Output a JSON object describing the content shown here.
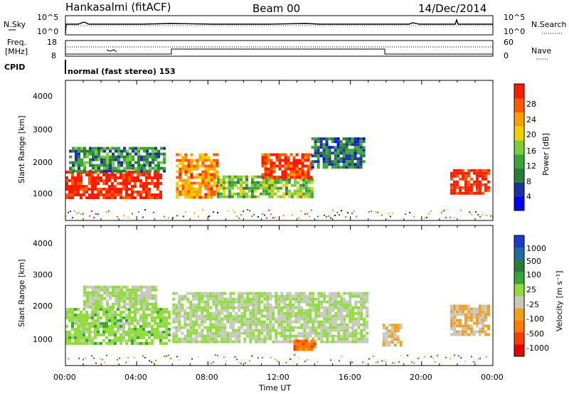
{
  "header": {
    "station": "Hankasalmi (fitACF)",
    "beam": "Beam 00",
    "date": "14/Dec/2014"
  },
  "noise_panel": {
    "left_label": "N.Sky",
    "right_label": "N.Search",
    "left_ticks": [
      "10^5",
      "10^0"
    ],
    "right_ticks": [
      "10^5",
      "10^0"
    ]
  },
  "freq_panel": {
    "left_label_1": "Freq.",
    "left_label_2": "[MHz]",
    "right_label": "Nave",
    "left_ticks": [
      "18",
      "8"
    ],
    "right_ticks": [
      "60",
      "0"
    ]
  },
  "cpid": {
    "label": "CPID",
    "text": "normal (fast stereo) 153"
  },
  "x_axis": {
    "label": "Time UT",
    "ticks": [
      "00:00",
      "04:00",
      "08:00",
      "12:00",
      "16:00",
      "20:00",
      "00:00"
    ]
  },
  "power_panel": {
    "y_label": "Slant Range [km]",
    "y_ticks": [
      "4000",
      "3000",
      "2000",
      "1000"
    ],
    "colorbar_label": "Power [dB]",
    "colorbar_ticks": [
      "28",
      "24",
      "20",
      "16",
      "12",
      "8",
      "4"
    ],
    "colors": [
      "#0000ff",
      "#1c2fa8",
      "#2b7b3b",
      "#3aa33a",
      "#7ccd3c",
      "#f0d000",
      "#ffa000",
      "#ff5a00",
      "#ff1a00"
    ]
  },
  "velocity_panel": {
    "y_label": "Slant Range [km]",
    "y_ticks": [
      "4000",
      "3000",
      "2000",
      "1000"
    ],
    "colorbar_label": "Velocity [m s⁻¹]",
    "colorbar_ticks": [
      "1000",
      "500",
      "100",
      "25",
      "-25",
      "-100",
      "-500",
      "-1000"
    ],
    "colors": [
      "#1e3ac8",
      "#1f6a9e",
      "#2b7b3b",
      "#3aa33a",
      "#8fdc3c",
      "#c8c8c0",
      "#f0a020",
      "#ff7a00",
      "#ff3a00",
      "#e60000"
    ]
  },
  "chart_data": [
    {
      "type": "heatmap",
      "title": "Power [dB]",
      "xlabel": "Time UT",
      "ylabel": "Slant Range [km]",
      "xlim": [
        0,
        24
      ],
      "ylim": [
        180,
        4600
      ],
      "zlim": [
        0,
        30
      ],
      "blobs": [
        {
          "t0": 0.0,
          "t1": 5.3,
          "r0": 900,
          "r1": 1750,
          "value": 29
        },
        {
          "t0": 0.2,
          "t1": 5.5,
          "r0": 1750,
          "r1": 2500,
          "value": 10
        },
        {
          "t0": 6.2,
          "t1": 8.5,
          "r0": 950,
          "r1": 2300,
          "value": 22
        },
        {
          "t0": 8.5,
          "t1": 13.8,
          "r0": 950,
          "r1": 1600,
          "value": 14
        },
        {
          "t0": 11.0,
          "t1": 13.8,
          "r0": 1500,
          "r1": 2300,
          "value": 27
        },
        {
          "t0": 13.8,
          "t1": 16.8,
          "r0": 1900,
          "r1": 2800,
          "value": 8
        },
        {
          "t0": 21.6,
          "t1": 23.8,
          "r0": 1000,
          "r1": 1800,
          "value": 29
        }
      ]
    },
    {
      "type": "heatmap",
      "title": "Velocity [m s⁻¹]",
      "xlabel": "Time UT",
      "ylabel": "Slant Range [km]",
      "xlim": [
        0,
        24
      ],
      "ylim": [
        180,
        4600
      ],
      "zlim": [
        -1000,
        1000
      ],
      "blobs": [
        {
          "t0": 0.0,
          "t1": 5.8,
          "r0": 900,
          "r1": 2000,
          "value": 100
        },
        {
          "t0": 1.0,
          "t1": 5.0,
          "r0": 2000,
          "r1": 2700,
          "value": 0
        },
        {
          "t0": 6.0,
          "t1": 17.0,
          "r0": 900,
          "r1": 2500,
          "value": 0
        },
        {
          "t0": 12.8,
          "t1": 14.0,
          "r0": 700,
          "r1": 1000,
          "value": -500
        },
        {
          "t0": 17.8,
          "t1": 18.8,
          "r0": 800,
          "r1": 1500,
          "value": -200
        },
        {
          "t0": 21.6,
          "t1": 23.8,
          "r0": 1200,
          "r1": 2100,
          "value": -200
        }
      ]
    }
  ]
}
